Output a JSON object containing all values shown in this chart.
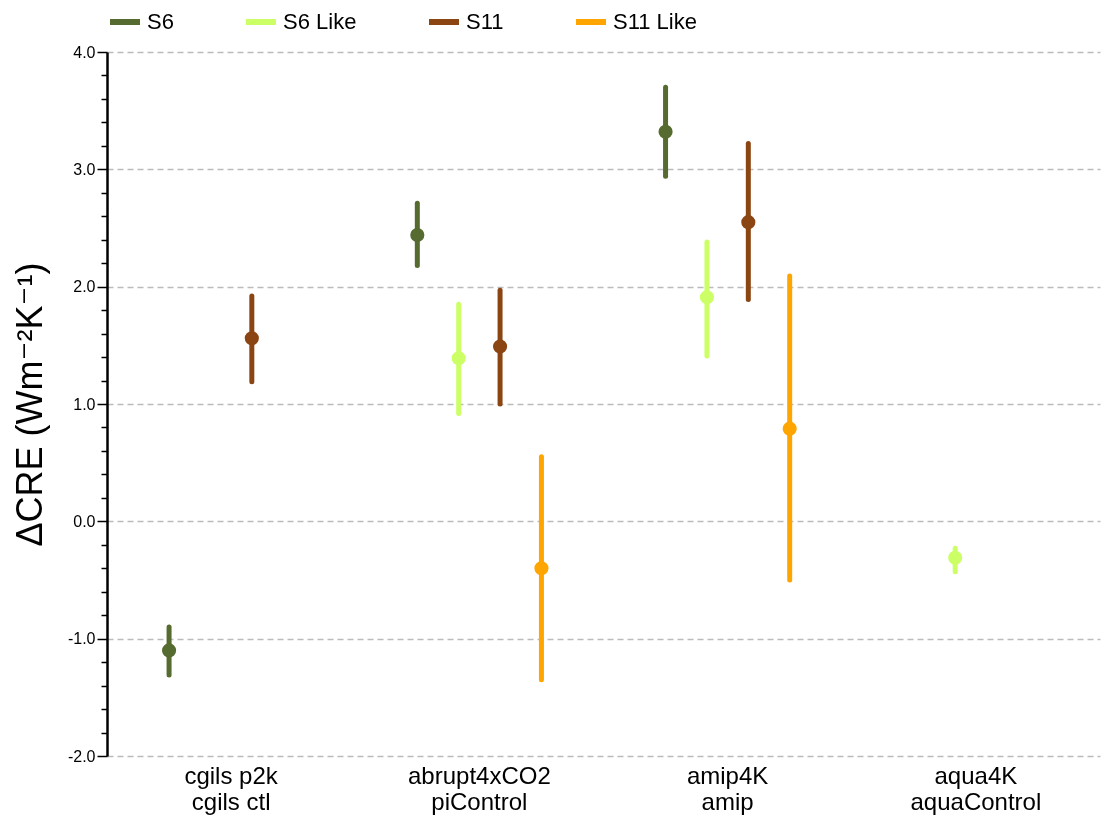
{
  "chart_data": {
    "type": "scatter",
    "ylabel": "ΔCRE (Wm⁻²K⁻¹)",
    "categories": [
      "cgils p2k\ncgils ctl",
      "abrupt4xCO2\npiControl",
      "amip4K\namip",
      "aqua4K\naquaControl"
    ],
    "series": [
      {
        "name": "S6",
        "color": "#556b2f",
        "values": [
          -1.1,
          2.44,
          3.32,
          null
        ],
        "errors": [
          [
            -1.31,
            -0.9
          ],
          [
            2.18,
            2.71
          ],
          [
            2.94,
            3.7
          ],
          null
        ]
      },
      {
        "name": "S6 Like",
        "color": "#ccff66",
        "values": [
          null,
          1.39,
          1.91,
          -0.31
        ],
        "errors": [
          null,
          [
            0.92,
            1.85
          ],
          [
            1.41,
            2.38
          ],
          [
            -0.43,
            -0.23
          ]
        ]
      },
      {
        "name": "S11",
        "color": "#8b4513",
        "values": [
          1.56,
          1.49,
          2.55,
          null
        ],
        "errors": [
          [
            1.19,
            1.92
          ],
          [
            1.0,
            1.97
          ],
          [
            1.89,
            3.22
          ],
          null
        ]
      },
      {
        "name": "S11 Like",
        "color": "#ffa500",
        "values": [
          null,
          -0.4,
          0.79,
          null
        ],
        "errors": [
          null,
          [
            -1.35,
            0.55
          ],
          [
            -0.5,
            2.09
          ],
          null
        ]
      }
    ],
    "ylim": [
      -2.0,
      4.0
    ],
    "yticks": [
      {
        "value": -2,
        "label": "-2.0"
      },
      {
        "value": -1.8,
        "label": null
      },
      {
        "value": -1.6,
        "label": null
      },
      {
        "value": -1.4,
        "label": null
      },
      {
        "value": -1.2,
        "label": null
      },
      {
        "value": -1,
        "label": "-1.0"
      },
      {
        "value": -0.8,
        "label": null
      },
      {
        "value": -0.6,
        "label": null
      },
      {
        "value": -0.4,
        "label": null
      },
      {
        "value": -0.2,
        "label": null
      },
      {
        "value": 0,
        "label": "0.0"
      },
      {
        "value": 0.2,
        "label": null
      },
      {
        "value": 0.4,
        "label": null
      },
      {
        "value": 0.6,
        "label": null
      },
      {
        "value": 0.8,
        "label": null
      },
      {
        "value": 1,
        "label": "1.0"
      },
      {
        "value": 1.2,
        "label": null
      },
      {
        "value": 1.4,
        "label": null
      },
      {
        "value": 1.6,
        "label": null
      },
      {
        "value": 1.8,
        "label": null
      },
      {
        "value": 2,
        "label": "2.0"
      },
      {
        "value": 2.2,
        "label": null
      },
      {
        "value": 2.4,
        "label": null
      },
      {
        "value": 2.6,
        "label": null
      },
      {
        "value": 2.8,
        "label": null
      },
      {
        "value": 3,
        "label": "3.0"
      },
      {
        "value": 3.2,
        "label": null
      },
      {
        "value": 3.4,
        "label": null
      },
      {
        "value": 3.6,
        "label": null
      },
      {
        "value": 3.8,
        "label": null
      },
      {
        "value": 4,
        "label": "4.0"
      }
    ],
    "grid": "y",
    "legend": "top",
    "marker": "circle"
  }
}
